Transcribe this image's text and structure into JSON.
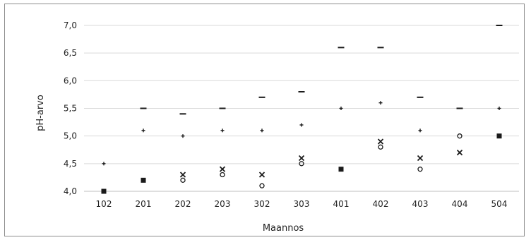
{
  "chart_data": {
    "type": "scatter",
    "xlabel": "Maannos",
    "ylabel": "pH-arvo",
    "categories": [
      "102",
      "201",
      "202",
      "203",
      "302",
      "303",
      "401",
      "402",
      "403",
      "404",
      "504"
    ],
    "ylim": [
      4.0,
      7.0
    ],
    "yticks": [
      "4,0",
      "4,5",
      "5,0",
      "5,5",
      "6,0",
      "6,5",
      "7,0"
    ],
    "ytick_values": [
      4.0,
      4.5,
      5.0,
      5.5,
      6.0,
      6.5,
      7.0
    ],
    "grid": true,
    "series": [
      {
        "marker": "dash",
        "values": [
          null,
          5.5,
          5.4,
          5.5,
          5.7,
          5.8,
          6.6,
          6.6,
          5.7,
          5.5,
          7.0
        ]
      },
      {
        "marker": "plus",
        "values": [
          4.5,
          5.1,
          5.0,
          5.1,
          5.1,
          5.2,
          5.5,
          5.6,
          5.1,
          null,
          5.5
        ]
      },
      {
        "marker": "cross",
        "values": [
          null,
          null,
          4.3,
          4.4,
          4.3,
          4.6,
          null,
          4.9,
          4.6,
          4.7,
          null
        ]
      },
      {
        "marker": "circle",
        "values": [
          null,
          null,
          4.2,
          4.3,
          4.1,
          4.5,
          null,
          4.8,
          4.4,
          5.0,
          null
        ]
      },
      {
        "marker": "square",
        "values": [
          4.0,
          4.2,
          null,
          null,
          null,
          null,
          4.4,
          null,
          null,
          null,
          5.0
        ]
      }
    ],
    "colors": {
      "marker": "#1a1a1a",
      "grid": "#d9d9d9",
      "axis": "#bfbfbf"
    }
  }
}
